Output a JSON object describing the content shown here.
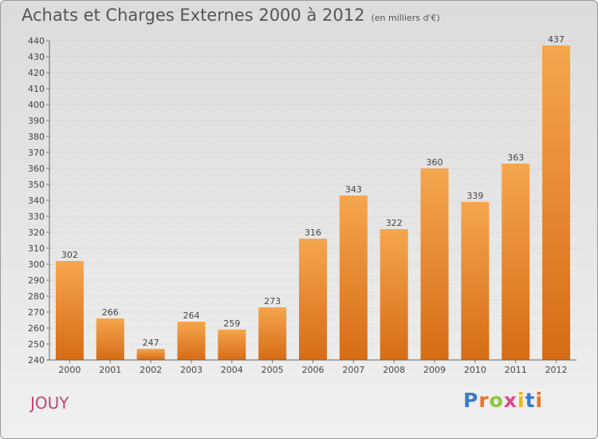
{
  "title": "Achats et Charges Externes 2000 à 2012",
  "unit": "(en milliers d'€)",
  "commune": "JOUY",
  "logo": "Proxiti",
  "colors": {
    "bar_top": "#f5a64e",
    "bar_bottom": "#d66c16",
    "title_text": "#555555",
    "commune_text": "#c0457a",
    "logo_letters": [
      "#3b7bc9",
      "#e8732a",
      "#8cc63f",
      "#d94a8c",
      "#f2b41c",
      "#3b7bc9",
      "#e8732a"
    ]
  },
  "chart_data": {
    "type": "bar",
    "title": "Achats et Charges Externes 2000 à 2012",
    "subtitle": "(en milliers d'€)",
    "categories": [
      "2000",
      "2001",
      "2002",
      "2003",
      "2004",
      "2005",
      "2006",
      "2007",
      "2008",
      "2009",
      "2010",
      "2011",
      "2012"
    ],
    "values": [
      302,
      266,
      247,
      264,
      259,
      273,
      316,
      343,
      322,
      360,
      339,
      363,
      437
    ],
    "ylim": [
      240,
      440
    ],
    "yticks": [
      240,
      250,
      260,
      270,
      280,
      290,
      300,
      310,
      320,
      330,
      340,
      350,
      360,
      370,
      380,
      390,
      400,
      410,
      420,
      430,
      440
    ],
    "grid": true,
    "legend": "none"
  }
}
